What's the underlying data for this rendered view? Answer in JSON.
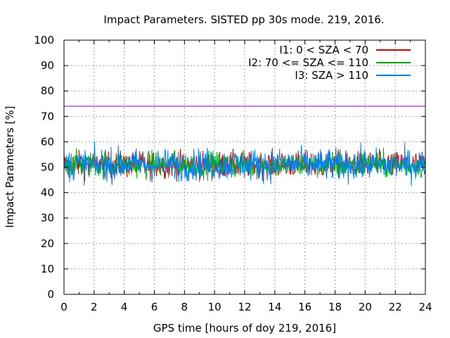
{
  "chart_data": {
    "type": "line",
    "title": "Impact Parameters. SISTED pp 30s mode. 219, 2016.",
    "xlabel": "GPS time [hours of doy 219, 2016]",
    "ylabel": "Impact Parameters [%]",
    "xlim": [
      0,
      24
    ],
    "ylim": [
      0,
      100
    ],
    "xticks": [
      0,
      2,
      4,
      6,
      8,
      10,
      12,
      14,
      16,
      18,
      20,
      22,
      24
    ],
    "yticks": [
      0,
      10,
      20,
      30,
      40,
      50,
      60,
      70,
      80,
      90,
      100
    ],
    "grid": true,
    "legend_position": "top-right",
    "reference_line": {
      "y": 74,
      "color": "#9400d3"
    },
    "series": [
      {
        "name": "I1: 0 < SZA < 70",
        "color": "#e00000",
        "mean": 51,
        "range": [
          39,
          62
        ],
        "x_range": [
          0,
          24
        ]
      },
      {
        "name": "I2: 70 <= SZA <= 110",
        "color": "#00b000",
        "mean": 51,
        "range": [
          39,
          62
        ],
        "x_range": [
          0,
          24
        ]
      },
      {
        "name": "I3: SZA > 110",
        "color": "#0080ff",
        "mean": 51,
        "range": [
          36,
          64
        ],
        "x_range": [
          0,
          24
        ]
      }
    ]
  }
}
